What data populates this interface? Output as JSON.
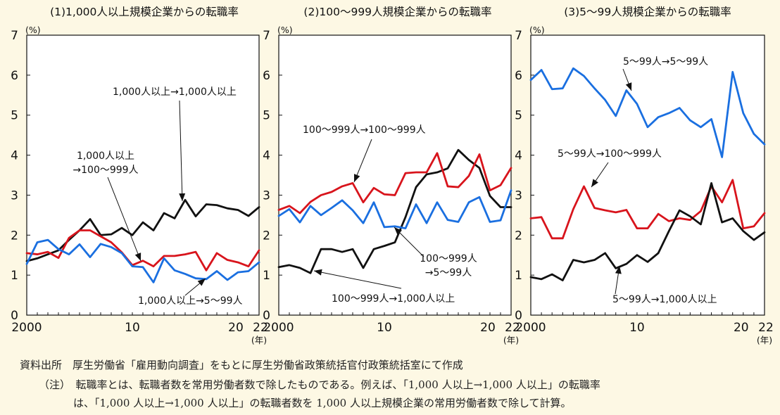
{
  "chart_data": [
    {
      "type": "line",
      "title": "(1)1,000人以上規模企業からの転職率",
      "ylabel": "(%)",
      "xlabel": "(年)",
      "ylim": [
        0,
        7
      ],
      "yticks": [
        "0",
        "1",
        "2",
        "3",
        "4",
        "5",
        "6",
        "7"
      ],
      "xlim": [
        2000,
        2022
      ],
      "xticks": [
        {
          "x": 2000,
          "label": "2000"
        },
        {
          "x": 2010,
          "label": "10"
        },
        {
          "x": 2020,
          "label": "20"
        },
        {
          "x": 2022,
          "label": "22"
        }
      ],
      "x": [
        2000,
        2001,
        2002,
        2003,
        2004,
        2005,
        2006,
        2007,
        2008,
        2009,
        2010,
        2011,
        2012,
        2013,
        2014,
        2015,
        2016,
        2017,
        2018,
        2019,
        2020,
        2021,
        2022
      ],
      "series": [
        {
          "name": "1,000人以上→1,000人以上",
          "color": "#111111",
          "values": [
            1.35,
            1.42,
            1.52,
            1.62,
            1.88,
            2.12,
            2.4,
            2.0,
            2.02,
            2.18,
            2.0,
            2.32,
            2.12,
            2.55,
            2.42,
            2.88,
            2.47,
            2.77,
            2.75,
            2.67,
            2.63,
            2.48,
            2.7
          ]
        },
        {
          "name": "1,000人以上→100～999人",
          "color": "#d8141c",
          "values": [
            1.55,
            1.52,
            1.58,
            1.43,
            1.93,
            2.12,
            2.12,
            1.97,
            1.82,
            1.57,
            1.25,
            1.36,
            1.22,
            1.48,
            1.48,
            1.52,
            1.58,
            1.12,
            1.55,
            1.38,
            1.32,
            1.22,
            1.62
          ]
        },
        {
          "name": "1,000人以上→5～99人",
          "color": "#1a6fe0",
          "values": [
            1.28,
            1.82,
            1.88,
            1.65,
            1.52,
            1.77,
            1.45,
            1.78,
            1.7,
            1.55,
            1.22,
            1.2,
            0.82,
            1.42,
            1.12,
            1.03,
            0.92,
            0.9,
            1.1,
            0.88,
            1.07,
            1.1,
            1.32
          ]
        }
      ],
      "annotations": [
        {
          "text": "1,000人以上→1,000人以上"
        },
        {
          "text": "1,000人以上"
        },
        {
          "text": "→100～999人"
        },
        {
          "text": "1,000人以上→5～99人"
        }
      ]
    },
    {
      "type": "line",
      "title": "(2)100～999人規模企業からの転職率",
      "ylabel": "(%)",
      "xlabel": "(年)",
      "ylim": [
        0,
        7
      ],
      "yticks": [
        "0",
        "1",
        "2",
        "3",
        "4",
        "5",
        "6",
        "7"
      ],
      "xlim": [
        2000,
        2022
      ],
      "xticks": [
        {
          "x": 2000,
          "label": "2000"
        },
        {
          "x": 2010,
          "label": "10"
        },
        {
          "x": 2020,
          "label": "20"
        },
        {
          "x": 2022,
          "label": "22"
        }
      ],
      "x": [
        2000,
        2001,
        2002,
        2003,
        2004,
        2005,
        2006,
        2007,
        2008,
        2009,
        2010,
        2011,
        2012,
        2013,
        2014,
        2015,
        2016,
        2017,
        2018,
        2019,
        2020,
        2021,
        2022
      ],
      "series": [
        {
          "name": "100～999人→1,000人以上",
          "color": "#111111",
          "values": [
            1.2,
            1.25,
            1.18,
            1.05,
            1.65,
            1.65,
            1.58,
            1.65,
            1.18,
            1.65,
            1.73,
            1.82,
            2.45,
            3.2,
            3.52,
            3.57,
            3.67,
            4.13,
            3.88,
            3.68,
            2.98,
            2.7,
            2.7
          ]
        },
        {
          "name": "100～999人→100～999人",
          "color": "#d8141c",
          "values": [
            2.63,
            2.73,
            2.55,
            2.83,
            3.0,
            3.08,
            3.22,
            3.3,
            2.82,
            3.18,
            3.02,
            3.0,
            3.55,
            3.57,
            3.57,
            4.05,
            3.22,
            3.2,
            3.48,
            4.02,
            3.12,
            3.25,
            3.68
          ]
        },
        {
          "name": "100～999人→5～99人",
          "color": "#1a6fe0",
          "values": [
            2.48,
            2.65,
            2.32,
            2.73,
            2.5,
            2.68,
            2.87,
            2.62,
            2.3,
            2.82,
            2.2,
            2.22,
            2.17,
            2.77,
            2.3,
            2.82,
            2.38,
            2.33,
            2.82,
            2.95,
            2.33,
            2.37,
            3.12
          ]
        }
      ],
      "annotations": [
        {
          "text": "100～999人→100～999人"
        },
        {
          "text": "100～999人"
        },
        {
          "text": "→5～99人"
        },
        {
          "text": "100～999人→1,000人以上"
        }
      ]
    },
    {
      "type": "line",
      "title": "(3)5～99人規模企業からの転職率",
      "ylabel": "(%)",
      "xlabel": "(年)",
      "ylim": [
        0,
        7
      ],
      "yticks": [
        "0",
        "1",
        "2",
        "3",
        "4",
        "5",
        "6",
        "7"
      ],
      "xlim": [
        2000,
        2022
      ],
      "xticks": [
        {
          "x": 2000,
          "label": "2000"
        },
        {
          "x": 2010,
          "label": "10"
        },
        {
          "x": 2020,
          "label": "20"
        },
        {
          "x": 2022,
          "label": "22"
        }
      ],
      "x": [
        2000,
        2001,
        2002,
        2003,
        2004,
        2005,
        2006,
        2007,
        2008,
        2009,
        2010,
        2011,
        2012,
        2013,
        2014,
        2015,
        2016,
        2017,
        2018,
        2019,
        2020,
        2021,
        2022
      ],
      "series": [
        {
          "name": "5～99人→5～99人",
          "color": "#1a6fe0",
          "values": [
            5.88,
            6.13,
            5.65,
            5.67,
            6.17,
            5.98,
            5.67,
            5.38,
            4.98,
            5.62,
            5.28,
            4.7,
            4.95,
            5.05,
            5.18,
            4.87,
            4.7,
            4.9,
            3.95,
            6.08,
            5.05,
            4.53,
            4.27
          ]
        },
        {
          "name": "5～99人→100～999人",
          "color": "#d8141c",
          "values": [
            2.42,
            2.45,
            1.92,
            1.92,
            2.65,
            3.22,
            2.68,
            2.62,
            2.57,
            2.63,
            2.17,
            2.17,
            2.53,
            2.35,
            2.42,
            2.38,
            2.6,
            3.22,
            2.82,
            3.38,
            2.17,
            2.22,
            2.55
          ]
        },
        {
          "name": "5～99人→1,000人以上",
          "color": "#111111",
          "values": [
            0.95,
            0.9,
            1.02,
            0.87,
            1.38,
            1.32,
            1.38,
            1.55,
            1.17,
            1.28,
            1.5,
            1.33,
            1.55,
            2.1,
            2.62,
            2.47,
            2.27,
            3.3,
            2.32,
            2.42,
            2.1,
            1.88,
            2.07
          ]
        }
      ],
      "annotations": [
        {
          "text": "5～99人→5～99人"
        },
        {
          "text": "5～99人→100～999人"
        },
        {
          "text": "5～99人→1,000人以上"
        }
      ]
    }
  ],
  "footnote": {
    "source": "資料出所　厚生労働省「雇用動向調査」をもとに厚生労働省政策統括官付政策統括室にて作成",
    "note1": "（注）　転職率とは、転職者数を常用労働者数で除したものである。例えば、「1,000 人以上→1,000 人以上」の転職率",
    "note2": "は、「1,000 人以上→1,000 人以上」の転職者数を 1,000 人以上規模企業の常用労働者数で除して計算。"
  }
}
